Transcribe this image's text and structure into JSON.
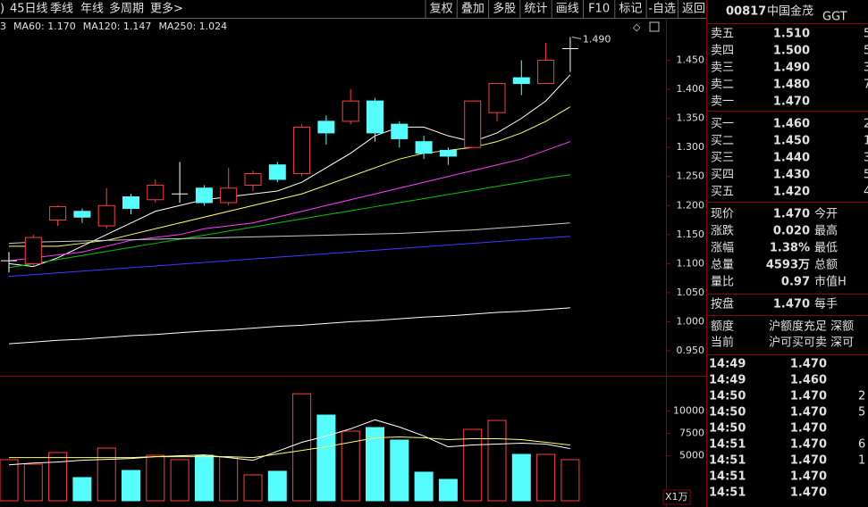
{
  "toolbar": {
    "left": [
      ")",
      "45日线",
      "季线",
      "年线",
      "多周期",
      "更多>"
    ],
    "right": [
      "复权",
      "叠加",
      "多股",
      "统计",
      "画线",
      "F10",
      "标记",
      "-自选",
      "返回"
    ]
  },
  "chart_data": [
    {
      "type": "candlestick",
      "open": [
        1.105,
        1.1,
        1.175,
        1.19,
        1.165,
        1.215,
        1.21,
        1.22,
        1.23,
        1.205,
        1.235,
        1.27,
        1.255,
        1.345,
        1.345,
        1.38,
        1.34,
        1.31,
        1.295,
        1.3,
        1.36,
        1.42,
        1.41,
        1.47
      ],
      "high": [
        1.12,
        1.15,
        1.2,
        1.195,
        1.23,
        1.22,
        1.245,
        1.275,
        1.235,
        1.265,
        1.26,
        1.275,
        1.34,
        1.355,
        1.4,
        1.385,
        1.345,
        1.32,
        1.3,
        1.38,
        1.41,
        1.45,
        1.48,
        1.49
      ],
      "low": [
        1.085,
        1.095,
        1.165,
        1.17,
        1.16,
        1.185,
        1.205,
        1.205,
        1.2,
        1.2,
        1.225,
        1.24,
        1.25,
        1.305,
        1.34,
        1.31,
        1.3,
        1.28,
        1.27,
        1.3,
        1.345,
        1.39,
        1.41,
        1.43
      ],
      "close": [
        1.105,
        1.145,
        1.198,
        1.18,
        1.2,
        1.195,
        1.235,
        1.22,
        1.205,
        1.23,
        1.255,
        1.245,
        1.335,
        1.325,
        1.38,
        1.325,
        1.315,
        1.29,
        1.285,
        1.38,
        1.41,
        1.41,
        1.45,
        1.47
      ],
      "up_color": "#ff3c3c",
      "down_color": "#54fcfc",
      "flat_color": "#ffffff",
      "ylim": [
        0.91,
        1.52
      ],
      "yticks": [
        {
          "value": 0.95,
          "label": "0.950"
        },
        {
          "value": 1.0,
          "label": "1.000"
        },
        {
          "value": 1.05,
          "label": "1.050"
        },
        {
          "value": 1.1,
          "label": "1.100"
        },
        {
          "value": 1.15,
          "label": "1.150"
        },
        {
          "value": 1.2,
          "label": "1.200"
        },
        {
          "value": 1.25,
          "label": "1.250"
        },
        {
          "value": 1.3,
          "label": "1.300"
        },
        {
          "value": 1.35,
          "label": "1.350"
        },
        {
          "value": 1.4,
          "label": "1.400"
        },
        {
          "value": 1.45,
          "label": "1.450"
        }
      ],
      "max_label": "1.490",
      "series": [
        {
          "color": "#ffffff",
          "values": [
            1.1,
            1.095,
            1.11,
            1.13,
            1.15,
            1.17,
            1.19,
            1.2,
            1.21,
            1.215,
            1.22,
            1.225,
            1.24,
            1.265,
            1.29,
            1.32,
            1.335,
            1.335,
            1.32,
            1.31,
            1.325,
            1.35,
            1.38,
            1.425
          ]
        },
        {
          "color": "#ffff66",
          "values": [
            1.13,
            1.13,
            1.13,
            1.135,
            1.14,
            1.15,
            1.16,
            1.17,
            1.18,
            1.19,
            1.2,
            1.21,
            1.22,
            1.235,
            1.25,
            1.265,
            1.28,
            1.29,
            1.295,
            1.3,
            1.31,
            1.325,
            1.345,
            1.37
          ]
        },
        {
          "color": "#ff3cff",
          "values": [
            1.105,
            1.11,
            1.115,
            1.12,
            1.13,
            1.14,
            1.145,
            1.15,
            1.16,
            1.165,
            1.17,
            1.18,
            1.19,
            1.2,
            1.21,
            1.22,
            1.23,
            1.24,
            1.25,
            1.26,
            1.27,
            1.28,
            1.295,
            1.31
          ]
        },
        {
          "name": "3",
          "color": "#00c800",
          "values": [
            1.093,
            1.1,
            1.107,
            1.114,
            1.121,
            1.128,
            1.135,
            1.142,
            1.149,
            1.156,
            1.163,
            1.17,
            1.177,
            1.184,
            1.191,
            1.198,
            1.205,
            1.212,
            1.219,
            1.226,
            1.233,
            1.24,
            1.247,
            1.253
          ]
        },
        {
          "name": "MA60: 1.170",
          "color": "#c8c8c8",
          "values": [
            1.135,
            1.137,
            1.138,
            1.139,
            1.14,
            1.141,
            1.142,
            1.143,
            1.144,
            1.145,
            1.146,
            1.147,
            1.148,
            1.149,
            1.15,
            1.151,
            1.152,
            1.154,
            1.156,
            1.158,
            1.161,
            1.164,
            1.167,
            1.17
          ]
        },
        {
          "name": "MA120: 1.147",
          "color": "#3c3cff",
          "values": [
            1.078,
            1.081,
            1.084,
            1.087,
            1.09,
            1.093,
            1.096,
            1.099,
            1.102,
            1.105,
            1.108,
            1.111,
            1.114,
            1.117,
            1.12,
            1.123,
            1.126,
            1.129,
            1.132,
            1.135,
            1.138,
            1.141,
            1.144,
            1.147
          ]
        },
        {
          "name": "MA250: 1.024",
          "color": "#ffffff",
          "values": [
            0.962,
            0.965,
            0.968,
            0.97,
            0.973,
            0.976,
            0.978,
            0.981,
            0.984,
            0.986,
            0.989,
            0.992,
            0.994,
            0.997,
            1.0,
            1.002,
            1.005,
            1.008,
            1.01,
            1.013,
            1.016,
            1.018,
            1.021,
            1.024
          ]
        }
      ]
    },
    {
      "type": "bar",
      "values": [
        4570,
        4070,
        5360,
        2580,
        5860,
        3370,
        5060,
        4570,
        5060,
        4860,
        2880,
        3280,
        11900,
        9530,
        7740,
        8140,
        6750,
        3180,
        2380,
        7940,
        8930,
        5160,
        5160,
        4570
      ],
      "ylim": [
        0,
        13500
      ],
      "yticks": [
        5000,
        7500,
        10000
      ],
      "unit_label": "X1万",
      "series": [
        {
          "color": "#ffffff",
          "values": [
            4000,
            4200,
            4300,
            4500,
            4600,
            4700,
            4900,
            5000,
            5100,
            4800,
            4500,
            5500,
            6500,
            7200,
            8000,
            9000,
            8200,
            7200,
            6000,
            6200,
            6300,
            6400,
            6300,
            5800
          ]
        },
        {
          "color": "#ffff66",
          "values": [
            4800,
            4800,
            4800,
            4800,
            4800,
            4800,
            4900,
            4900,
            4900,
            4900,
            4800,
            5200,
            5600,
            6000,
            6500,
            7000,
            7100,
            7000,
            6800,
            6900,
            6900,
            6800,
            6500,
            6200
          ]
        }
      ]
    }
  ],
  "quote": {
    "code": "00817",
    "name": "中国金茂",
    "tag": "GGT",
    "sell": [
      {
        "label": "卖五",
        "price": "1.510",
        "qty": "5",
        "color": "#ff3c3c"
      },
      {
        "label": "卖四",
        "price": "1.500",
        "qty": "5",
        "color": "#ff3c3c"
      },
      {
        "label": "卖三",
        "price": "1.490",
        "qty": "3",
        "color": "#ff3c3c"
      },
      {
        "label": "卖二",
        "price": "1.480",
        "qty": "7",
        "color": "#ff3c3c"
      },
      {
        "label": "卖一",
        "price": "1.470",
        "color": "#ff3c3c"
      }
    ],
    "buy": [
      {
        "label": "买一",
        "price": "1.460",
        "qty": "2",
        "color": "#ff3c3c"
      },
      {
        "label": "买二",
        "price": "1.450",
        "qty": "1",
        "color": "#ffffff"
      },
      {
        "label": "买三",
        "price": "1.440",
        "qty": "3",
        "color": "#00e000"
      },
      {
        "label": "买四",
        "price": "1.430",
        "qty": "5",
        "color": "#00e000"
      },
      {
        "label": "买五",
        "price": "1.420",
        "qty": "4",
        "color": "#00e000"
      }
    ],
    "stats": [
      {
        "label": "现价",
        "value": "1.470",
        "label2": "今开",
        "color": "#ff3c3c"
      },
      {
        "label": "涨跌",
        "value": "0.020",
        "label2": "最高",
        "color": "#ff3c3c"
      },
      {
        "label": "涨幅",
        "value": "1.38%",
        "label2": "最低",
        "color": "#ff3c3c"
      },
      {
        "label": "总量",
        "value": "4593万",
        "label2": "总额",
        "color": "#ffff66"
      },
      {
        "label": "量比",
        "value": "0.97",
        "label2": "市值H",
        "color": "#00e000"
      }
    ],
    "extra": {
      "label": "按盘",
      "value": "1.470",
      "label2": "每手",
      "color": "#ff3c3c"
    },
    "quota": [
      {
        "label": "额度",
        "value": "沪额度充足 深额"
      },
      {
        "label": "当前",
        "value": "沪可买可卖 深可"
      }
    ],
    "ticks": [
      {
        "time": "14:49",
        "price": "1.470"
      },
      {
        "time": "14:49",
        "price": "1.460"
      },
      {
        "time": "14:50",
        "price": "1.470",
        "qty": "2",
        "color": "#ffff66"
      },
      {
        "time": "14:50",
        "price": "1.470",
        "qty": "5",
        "color": "#ffff66"
      },
      {
        "time": "14:50",
        "price": "1.470"
      },
      {
        "time": "14:51",
        "price": "1.470",
        "qty": "6",
        "color": "#ff3cff"
      },
      {
        "time": "14:51",
        "price": "1.470",
        "qty": "1",
        "color": "#ffff66"
      },
      {
        "time": "14:51",
        "price": "1.470"
      },
      {
        "time": "14:51",
        "price": "1.470"
      }
    ]
  }
}
